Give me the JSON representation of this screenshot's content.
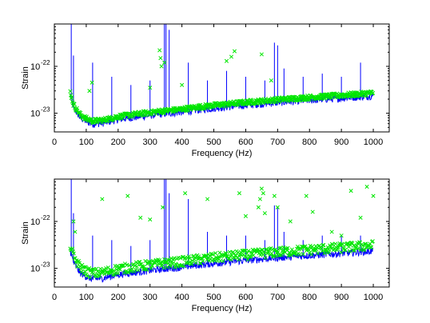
{
  "chart_data": [
    {
      "type": "line",
      "xlabel": "Frequency (Hz)",
      "ylabel": "Strain",
      "xlim": [
        0,
        1050
      ],
      "ylim": [
        4e-24,
        8e-22
      ],
      "yscale": "log",
      "xticks": [
        0,
        100,
        200,
        300,
        400,
        500,
        600,
        700,
        800,
        900,
        1000
      ],
      "yticks": [
        {
          "value": 1e-23,
          "label": "10",
          "exp": "-23"
        },
        {
          "value": 1e-22,
          "label": "10",
          "exp": "-22"
        }
      ],
      "grid": false,
      "series": [
        {
          "kind": "line",
          "color": "#0000ff",
          "floor": [
            [
              50,
              2.4e-23
            ],
            [
              60,
              1.3e-23
            ],
            [
              80,
              8e-24
            ],
            [
              100,
              6.5e-24
            ],
            [
              120,
              5.8e-24
            ],
            [
              150,
              6e-24
            ],
            [
              200,
              7.2e-24
            ],
            [
              250,
              8e-24
            ],
            [
              300,
              8.8e-24
            ],
            [
              340,
              9.5e-24
            ],
            [
              380,
              1e-23
            ],
            [
              450,
              1.15e-23
            ],
            [
              500,
              1.25e-23
            ],
            [
              600,
              1.45e-23
            ],
            [
              700,
              1.65e-23
            ],
            [
              800,
              1.85e-23
            ],
            [
              900,
              2.05e-23
            ],
            [
              1000,
              2.3e-23
            ]
          ],
          "lines": [
            [
              53,
              8e-22
            ],
            [
              60,
              1.7e-22
            ],
            [
              120,
              1.2e-22
            ],
            [
              180,
              6e-23
            ],
            [
              240,
              4e-23
            ],
            [
              300,
              5e-23
            ],
            [
              345,
              8e-22
            ],
            [
              350,
              8e-22
            ],
            [
              360,
              6e-22
            ],
            [
              420,
              1.2e-22
            ],
            [
              480,
              5e-23
            ],
            [
              540,
              8e-23
            ],
            [
              600,
              6e-23
            ],
            [
              660,
              5e-23
            ],
            [
              690,
              3.2e-22
            ],
            [
              700,
              2.8e-22
            ],
            [
              720,
              9e-23
            ],
            [
              780,
              6e-23
            ],
            [
              840,
              7e-23
            ],
            [
              900,
              6e-23
            ],
            [
              960,
              1.2e-22
            ]
          ]
        },
        {
          "kind": "scatter",
          "color": "#00e600",
          "marker": "x",
          "outliers": [
            [
              110,
              3e-23
            ],
            [
              118,
              4.5e-23
            ],
            [
              300,
              3.5e-23
            ],
            [
              330,
              2.2e-22
            ],
            [
              333,
              1.5e-22
            ],
            [
              336,
              1e-22
            ],
            [
              345,
              1.2e-22
            ],
            [
              400,
              4e-23
            ],
            [
              540,
              1.3e-22
            ],
            [
              555,
              1.6e-22
            ],
            [
              565,
              2.1e-22
            ],
            [
              650,
              1.8e-22
            ],
            [
              680,
              5e-23
            ]
          ]
        }
      ]
    },
    {
      "type": "line",
      "xlabel": "Frequency (Hz)",
      "ylabel": "Strain",
      "xlim": [
        0,
        1050
      ],
      "ylim": [
        4e-24,
        8e-22
      ],
      "yscale": "log",
      "xticks": [
        0,
        100,
        200,
        300,
        400,
        500,
        600,
        700,
        800,
        900,
        1000
      ],
      "yticks": [
        {
          "value": 1e-23,
          "label": "10",
          "exp": "-23"
        },
        {
          "value": 1e-22,
          "label": "10",
          "exp": "-22"
        }
      ],
      "grid": false,
      "series": [
        {
          "kind": "line",
          "color": "#0000ff",
          "floor": [
            [
              50,
              2.4e-23
            ],
            [
              60,
              1.3e-23
            ],
            [
              80,
              8e-24
            ],
            [
              100,
              6.5e-24
            ],
            [
              120,
              5.8e-24
            ],
            [
              150,
              6e-24
            ],
            [
              200,
              7.2e-24
            ],
            [
              250,
              8e-24
            ],
            [
              300,
              8.8e-24
            ],
            [
              340,
              9.5e-24
            ],
            [
              380,
              1e-23
            ],
            [
              450,
              1.15e-23
            ],
            [
              500,
              1.25e-23
            ],
            [
              600,
              1.45e-23
            ],
            [
              700,
              1.65e-23
            ],
            [
              800,
              1.85e-23
            ],
            [
              900,
              2.05e-23
            ],
            [
              1000,
              2.3e-23
            ]
          ],
          "lines": [
            [
              53,
              8e-22
            ],
            [
              60,
              1.5e-22
            ],
            [
              120,
              5e-23
            ],
            [
              180,
              4e-23
            ],
            [
              240,
              3e-23
            ],
            [
              300,
              4e-23
            ],
            [
              345,
              8e-22
            ],
            [
              350,
              8e-22
            ],
            [
              360,
              4e-22
            ],
            [
              420,
              3e-22
            ],
            [
              480,
              6e-23
            ],
            [
              540,
              5e-23
            ],
            [
              600,
              5e-23
            ],
            [
              660,
              4e-23
            ],
            [
              690,
              2.2e-22
            ],
            [
              700,
              2e-22
            ],
            [
              720,
              6e-23
            ],
            [
              780,
              4e-23
            ],
            [
              840,
              5e-23
            ],
            [
              900,
              5e-23
            ],
            [
              960,
              5e-23
            ]
          ]
        },
        {
          "kind": "scatter",
          "color": "#00e600",
          "marker": "x",
          "outliers": [
            [
              60,
              1e-22
            ],
            [
              65,
              6e-23
            ],
            [
              150,
              3e-22
            ],
            [
              230,
              3.5e-22
            ],
            [
              270,
              1.2e-22
            ],
            [
              300,
              1.1e-22
            ],
            [
              340,
              2e-22
            ],
            [
              410,
              4e-22
            ],
            [
              480,
              3e-22
            ],
            [
              580,
              4e-22
            ],
            [
              600,
              1.3e-22
            ],
            [
              640,
              2e-22
            ],
            [
              645,
              3e-22
            ],
            [
              650,
              5e-22
            ],
            [
              655,
              4e-22
            ],
            [
              660,
              1.5e-22
            ],
            [
              690,
              3.5e-22
            ],
            [
              700,
              2e-22
            ],
            [
              740,
              1e-22
            ],
            [
              790,
              3.5e-22
            ],
            [
              810,
              1.6e-22
            ],
            [
              870,
              6e-23
            ],
            [
              900,
              5e-23
            ],
            [
              930,
              4.5e-22
            ],
            [
              960,
              1.2e-22
            ],
            [
              980,
              5.5e-22
            ],
            [
              1000,
              3.5e-22
            ]
          ]
        }
      ]
    }
  ]
}
